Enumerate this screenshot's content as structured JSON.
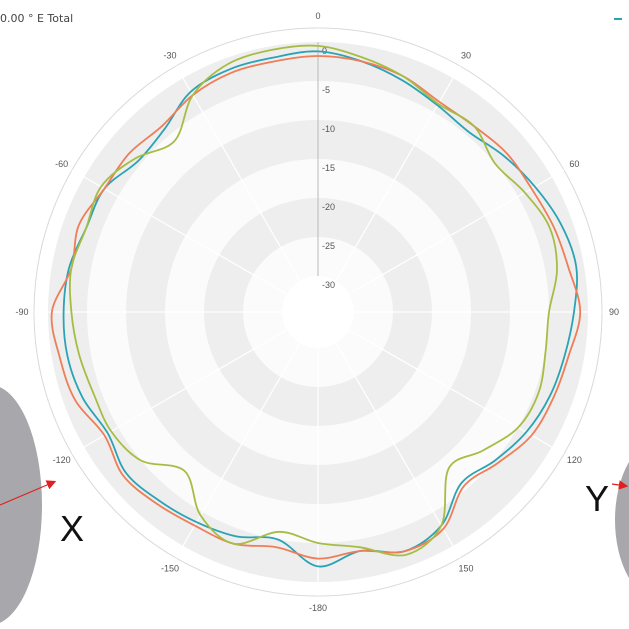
{
  "title": "0.00 ° E Total",
  "annotations": {
    "x_label": "X",
    "y_label": "Y"
  },
  "colors": {
    "teal": "#2aa3b5",
    "orange": "#ef7d57",
    "green": "#a6bd45",
    "band": "#eeeeee",
    "grid": "#d9d9d9",
    "arrow": "#e02020",
    "disc": "#a8a8ac"
  },
  "chart_data": {
    "type": "line",
    "projection": "polar",
    "rlim": [
      -30,
      0
    ],
    "radial_ticks": [
      0,
      -5,
      -10,
      -15,
      -20,
      -25,
      -30
    ],
    "angle_ticks": [
      0,
      30,
      60,
      90,
      120,
      150,
      -180,
      -150,
      -120,
      -90,
      -60,
      -30
    ],
    "grid": true,
    "series": [
      {
        "color": "#2aa3b5",
        "angles": [
          -180,
          -170,
          -160,
          -150,
          -140,
          -130,
          -120,
          -110,
          -100,
          -90,
          -80,
          -70,
          -60,
          -50,
          -40,
          -30,
          -20,
          -10,
          0,
          10,
          20,
          30,
          40,
          50,
          60,
          70,
          80,
          90,
          100,
          110,
          120,
          130,
          140,
          150,
          160,
          170,
          180
        ],
        "values": [
          -2.0,
          -5.0,
          -4.0,
          -3.5,
          -3.0,
          -2.5,
          -3.5,
          -2.5,
          -2.0,
          -2.0,
          -2.2,
          -3.0,
          -3.0,
          -4.5,
          -4.0,
          -2.0,
          -1.5,
          -1.5,
          -1.2,
          -2.0,
          -3.0,
          -4.0,
          -4.5,
          -3.5,
          -2.5,
          -1.5,
          -1.0,
          -1.8,
          -2.5,
          -3.0,
          -3.8,
          -5.0,
          -6.0,
          -3.0,
          -2.0,
          -3.5,
          -2.0
        ]
      },
      {
        "color": "#ef7d57",
        "angles": [
          -180,
          -170,
          -160,
          -150,
          -140,
          -130,
          -120,
          -110,
          -100,
          -90,
          -80,
          -70,
          -60,
          -50,
          -40,
          -30,
          -20,
          -10,
          0,
          10,
          20,
          30,
          40,
          50,
          60,
          70,
          80,
          90,
          100,
          110,
          120,
          130,
          140,
          150,
          160,
          170,
          180
        ],
        "values": [
          -3.0,
          -4.0,
          -3.0,
          -3.0,
          -2.5,
          -2.0,
          -3.0,
          -1.5,
          -1.0,
          -0.5,
          -2.5,
          -2.0,
          -3.0,
          -3.0,
          -3.5,
          -2.5,
          -2.0,
          -2.0,
          -1.8,
          -2.0,
          -2.5,
          -3.5,
          -3.5,
          -3.0,
          -3.0,
          -2.5,
          -2.0,
          -1.0,
          -2.0,
          -2.5,
          -3.0,
          -4.5,
          -5.5,
          -2.5,
          -2.0,
          -3.5,
          -3.0
        ]
      },
      {
        "color": "#a6bd45",
        "angles": [
          -180,
          -170,
          -160,
          -150,
          -140,
          -130,
          -120,
          -110,
          -100,
          -90,
          -80,
          -70,
          -60,
          -50,
          -40,
          -30,
          -20,
          -10,
          0,
          10,
          20,
          30,
          40,
          50,
          60,
          70,
          80,
          90,
          100,
          110,
          120,
          130,
          140,
          150,
          160,
          170,
          180
        ],
        "values": [
          -5.0,
          -6.0,
          -3.0,
          -4.5,
          -8.0,
          -5.0,
          -4.0,
          -4.0,
          -3.5,
          -3.0,
          -2.5,
          -3.0,
          -2.5,
          -4.0,
          -6.0,
          -2.5,
          -0.8,
          -0.5,
          -0.5,
          -1.5,
          -2.5,
          -3.8,
          -3.5,
          -5.0,
          -4.0,
          -3.0,
          -3.5,
          -5.0,
          -5.0,
          -4.5,
          -5.0,
          -7.0,
          -8.5,
          -3.0,
          -1.5,
          -4.0,
          -5.0
        ]
      }
    ]
  }
}
